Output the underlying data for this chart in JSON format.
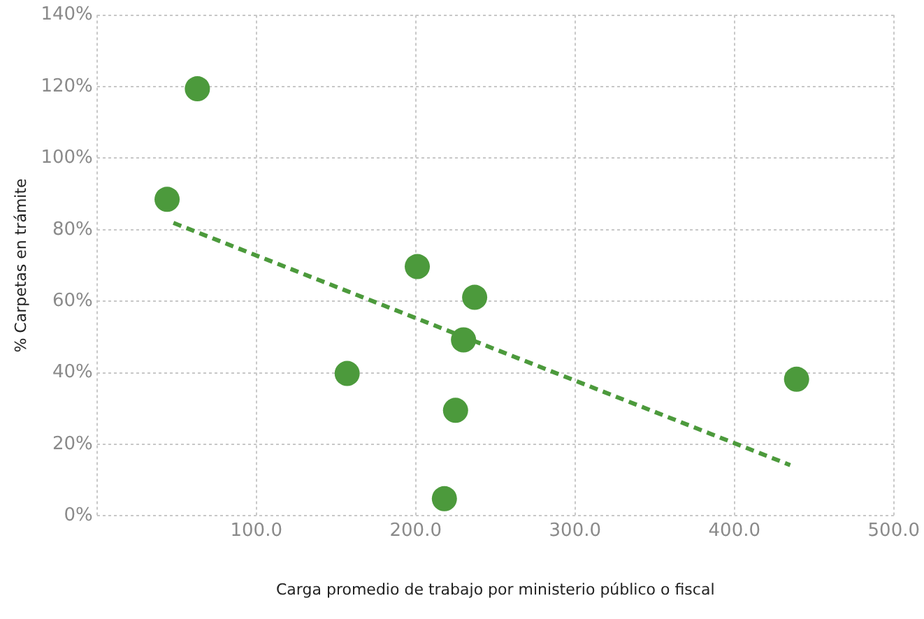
{
  "chart_data": {
    "type": "scatter",
    "xlabel": "Carga promedio de trabajo por ministerio público o fiscal",
    "ylabel": "% Carpetas en trámite",
    "xlim": [
      0,
      500
    ],
    "xticks": [
      {
        "value": 0,
        "label": null
      },
      {
        "value": 100,
        "label": "100.0"
      },
      {
        "value": 200,
        "label": "200.0"
      },
      {
        "value": 300,
        "label": "300.0"
      },
      {
        "value": 400,
        "label": "400.0"
      },
      {
        "value": 500,
        "label": "500.0"
      }
    ],
    "ylim": [
      0,
      140
    ],
    "yticks": [
      {
        "value": 0,
        "label": "0%"
      },
      {
        "value": 20,
        "label": "20%"
      },
      {
        "value": 40,
        "label": "40%"
      },
      {
        "value": 60,
        "label": "60%"
      },
      {
        "value": 80,
        "label": "80%"
      },
      {
        "value": 100,
        "label": "100%"
      },
      {
        "value": 120,
        "label": "120%"
      },
      {
        "value": 140,
        "label": "140%"
      }
    ],
    "grid": true,
    "legend": false,
    "marker": "circle",
    "series": [
      {
        "color": "#4c9a3c",
        "x": [
          44,
          63,
          157,
          201,
          237,
          230,
          225,
          218,
          439
        ],
        "values": [
          88.5,
          119.4,
          39.8,
          69.7,
          61.1,
          49.2,
          29.5,
          4.8,
          38.2
        ]
      },
      {
        "type": "line",
        "color": "#4c9a3c",
        "line_style": "dashed",
        "marker": "none",
        "x": [
          48,
          435
        ],
        "values": [
          81.9,
          14.2
        ]
      }
    ]
  }
}
